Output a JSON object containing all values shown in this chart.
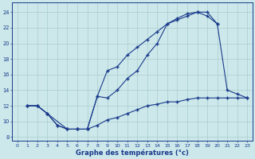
{
  "xlabel": "Graphe des températures (°c)",
  "bg_color": "#cce8ea",
  "line_color": "#1a3a8c",
  "grid_color": "#aacccc",
  "xlim": [
    -0.5,
    23.5
  ],
  "ylim": [
    7.5,
    25.2
  ],
  "xticks": [
    0,
    1,
    2,
    3,
    4,
    5,
    6,
    7,
    8,
    9,
    10,
    11,
    12,
    13,
    14,
    15,
    16,
    17,
    18,
    19,
    20,
    21,
    22,
    23
  ],
  "yticks": [
    8,
    10,
    12,
    14,
    16,
    18,
    20,
    22,
    24
  ],
  "curve1_x": [
    1,
    2,
    3,
    4,
    5,
    6,
    7,
    8,
    9,
    10,
    11,
    12,
    13,
    14,
    15,
    16,
    17,
    18,
    19,
    20
  ],
  "curve1_y": [
    12,
    12,
    11,
    9.5,
    9.0,
    9.0,
    9.0,
    13.2,
    13.0,
    14.0,
    15.5,
    16.5,
    18.5,
    20.0,
    22.5,
    23.0,
    23.5,
    24.0,
    24.0,
    22.5
  ],
  "curve2_x": [
    1,
    2,
    3,
    4,
    5,
    6,
    7,
    8,
    9,
    10,
    11,
    12,
    13,
    14,
    15,
    16,
    17,
    18,
    19,
    20,
    21,
    22,
    23
  ],
  "curve2_y": [
    12,
    12,
    11,
    9.5,
    9.0,
    9.0,
    9.0,
    9.5,
    10.2,
    10.5,
    11.0,
    11.5,
    12.0,
    12.2,
    12.5,
    12.5,
    12.8,
    13.0,
    13.0,
    13.0,
    13.0,
    13.0,
    13.0
  ],
  "curve3_x": [
    1,
    2,
    3,
    5,
    6,
    7,
    8,
    9,
    10,
    11,
    12,
    13,
    14,
    15,
    16,
    17,
    18,
    19,
    20,
    21,
    22,
    23
  ],
  "curve3_y": [
    12,
    12,
    11,
    9.0,
    9.0,
    9.0,
    13.2,
    16.5,
    17.0,
    18.5,
    19.5,
    20.5,
    21.5,
    22.5,
    23.2,
    23.8,
    24.0,
    23.5,
    22.5,
    14.0,
    13.5,
    13.0
  ]
}
